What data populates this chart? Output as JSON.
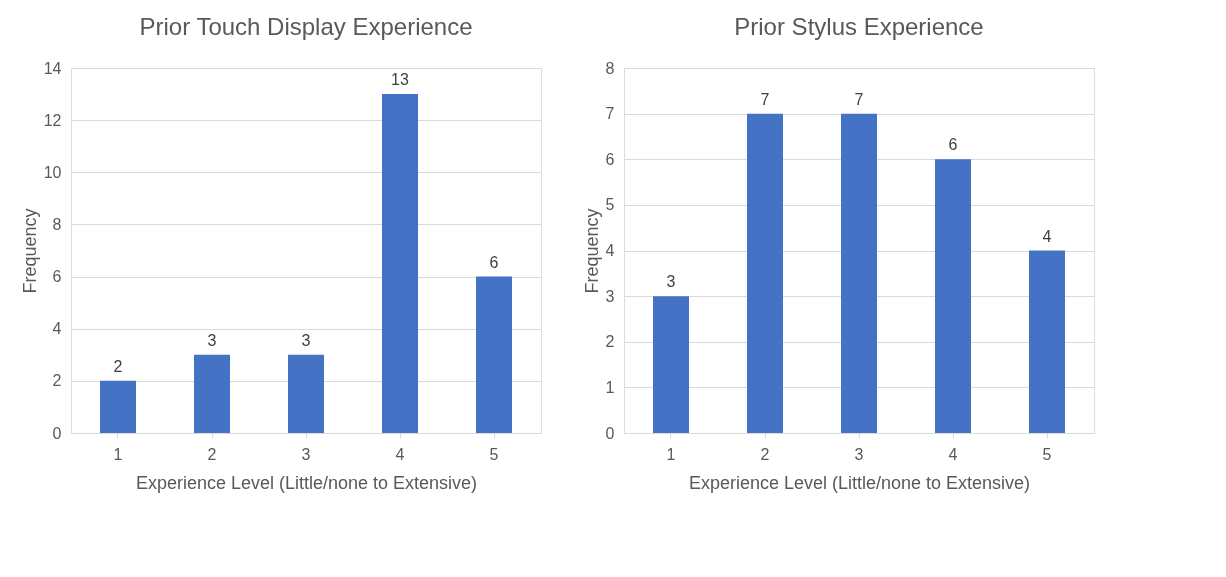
{
  "chart_data": [
    {
      "type": "bar",
      "title": "Prior Touch Display Experience",
      "xlabel": "Experience Level (Little/none to Extensive)",
      "ylabel": "Frequency",
      "categories": [
        "1",
        "2",
        "3",
        "4",
        "5"
      ],
      "values": [
        2,
        3,
        3,
        13,
        6
      ],
      "color": "#4472c4",
      "ylim": [
        0,
        14
      ],
      "yticks": [
        0,
        2,
        4,
        6,
        8,
        10,
        12,
        14
      ],
      "grid": "y",
      "data_labels": true
    },
    {
      "type": "bar",
      "title": "Prior Stylus Experience",
      "xlabel": "Experience Level (Little/none to Extensive)",
      "ylabel": "Frequency",
      "categories": [
        "1",
        "2",
        "3",
        "4",
        "5"
      ],
      "values": [
        3,
        7,
        7,
        6,
        4
      ],
      "color": "#4472c4",
      "ylim": [
        0,
        8
      ],
      "yticks": [
        0,
        1,
        2,
        3,
        4,
        5,
        6,
        7,
        8
      ],
      "grid": "y",
      "data_labels": true
    }
  ]
}
